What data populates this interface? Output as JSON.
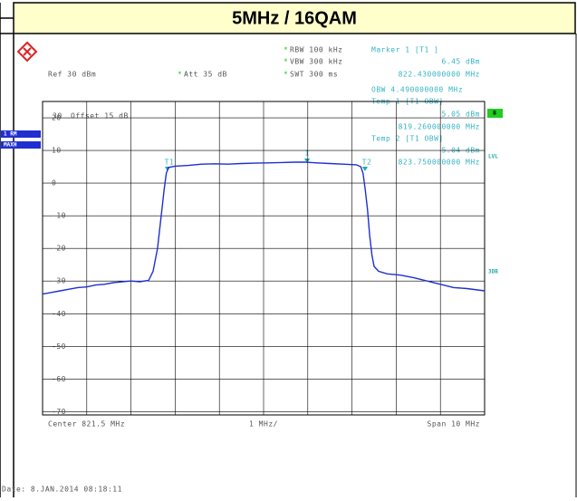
{
  "chart_data": {
    "type": "line",
    "title": "5MHz / 16QAM",
    "settings": {
      "rbw": "RBW 100 kHz",
      "vbw": "VBW 300 kHz",
      "swt": "SWT 300 ms",
      "ref": "Ref  30 dBm",
      "att": "Att  35 dB",
      "ref_level": "30",
      "offset": "Offset  15 dB"
    },
    "marker_info": {
      "marker": "Marker 1 [T1 ]",
      "marker_level": "6.45 dBm",
      "marker_freq": "822.430000000 MHz",
      "obw": "OBW  4.490000000 MHz",
      "temp1": "Temp 1 [T1 OBW]",
      "temp1_level": "5.05 dBm",
      "temp1_freq": "819.260000000 MHz",
      "temp2": "Temp 2 [T1 OBW]",
      "temp2_level": "5.04 dBm",
      "temp2_freq": "823.750000000 MHz"
    },
    "side_labels": {
      "trace": "1 RM",
      "detector": "MAXH",
      "b": "B",
      "lvl": "LVL",
      "db3": "3DB"
    },
    "marker_labels": {
      "t1": "T1",
      "m1": "1",
      "t2": "T2"
    },
    "x_labels": {
      "center": "Center  821.5 MHz",
      "div": "1 MHz/",
      "span": "Span  10 MHz"
    },
    "date": "Date: 8.JAN.2014  08:18:11",
    "xlim": [
      816.5,
      826.5
    ],
    "xticks": [
      816.5,
      817.5,
      818.5,
      819.5,
      820.5,
      821.5,
      822.5,
      823.5,
      824.5,
      825.5,
      826.5
    ],
    "ylim": [
      -71,
      25
    ],
    "yticks": [
      20,
      10,
      0,
      -10,
      -20,
      -30,
      -40,
      -50,
      -60,
      -70
    ],
    "grid": true,
    "series": [
      {
        "color": "#1f2fd0",
        "x": [
          816.5,
          816.7,
          816.9,
          817.1,
          817.3,
          817.5,
          817.7,
          817.9,
          818.1,
          818.3,
          818.5,
          818.7,
          818.9,
          819.0,
          819.1,
          819.2,
          819.25,
          819.3,
          819.35,
          819.5,
          819.8,
          820.1,
          820.4,
          820.7,
          821.0,
          821.3,
          821.6,
          821.9,
          822.2,
          822.43,
          822.7,
          823.0,
          823.3,
          823.6,
          823.7,
          823.75,
          823.8,
          823.85,
          823.9,
          823.95,
          824.0,
          824.1,
          824.3,
          824.6,
          824.9,
          825.2,
          825.5,
          825.8,
          826.1,
          826.5
        ],
        "values": [
          -34,
          -33.5,
          -33,
          -32.5,
          -32,
          -31.8,
          -31.2,
          -31,
          -30.5,
          -30.2,
          -30,
          -30.2,
          -29.8,
          -27,
          -20,
          -8,
          -2,
          3,
          4.8,
          5.2,
          5.4,
          5.8,
          5.9,
          5.8,
          6.0,
          6.1,
          6.2,
          6.3,
          6.4,
          6.45,
          6.2,
          6.0,
          5.8,
          5.6,
          5,
          3,
          -2,
          -8,
          -16,
          -22,
          -25.5,
          -27,
          -27.8,
          -28.2,
          -29,
          -30,
          -31,
          -32,
          -32.3,
          -33
        ]
      }
    ]
  }
}
